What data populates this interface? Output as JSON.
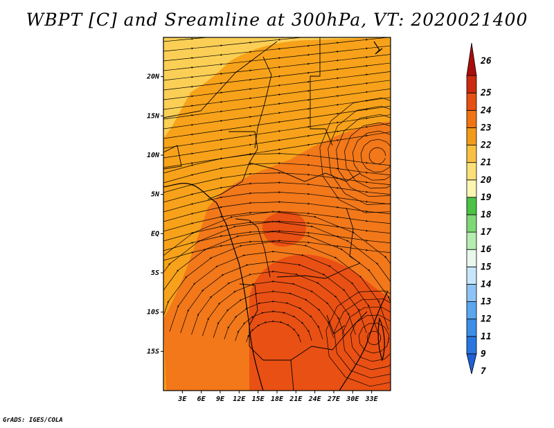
{
  "title": "WBPT [C] and Sreamline at 300hPa, VT: 2020021400",
  "credit": "GrADS: IGES/COLA",
  "map": {
    "lon_range": [
      0,
      36
    ],
    "lat_range": [
      -20,
      25
    ],
    "lat_ticks": [
      {
        "value": 20,
        "label": "20N"
      },
      {
        "value": 15,
        "label": "15N"
      },
      {
        "value": 10,
        "label": "10N"
      },
      {
        "value": 5,
        "label": "5N"
      },
      {
        "value": 0,
        "label": "EQ"
      },
      {
        "value": -5,
        "label": "5S"
      },
      {
        "value": -10,
        "label": "10S"
      },
      {
        "value": -15,
        "label": "15S"
      }
    ],
    "lon_ticks": [
      {
        "value": 3,
        "label": "3E"
      },
      {
        "value": 6,
        "label": "6E"
      },
      {
        "value": 9,
        "label": "9E"
      },
      {
        "value": 12,
        "label": "12E"
      },
      {
        "value": 15,
        "label": "15E"
      },
      {
        "value": 18,
        "label": "18E"
      },
      {
        "value": 21,
        "label": "21E"
      },
      {
        "value": 24,
        "label": "24E"
      },
      {
        "value": 27,
        "label": "27E"
      },
      {
        "value": 30,
        "label": "30E"
      },
      {
        "value": 33,
        "label": "33E"
      }
    ]
  },
  "colorbar": {
    "labels": [
      "7",
      "9",
      "11",
      "12",
      "13",
      "14",
      "15",
      "16",
      "17",
      "18",
      "19",
      "20",
      "21",
      "22",
      "23",
      "24",
      "25",
      "26"
    ],
    "colors": [
      "#1e5fd6",
      "#2a76e0",
      "#3c8ee8",
      "#5aa6f0",
      "#8ec4f5",
      "#c8e6fb",
      "#e8f8ec",
      "#b5ecb0",
      "#7ed876",
      "#4cc246",
      "#fbf5b2",
      "#fbe07a",
      "#f8c043",
      "#f29b19",
      "#f07512",
      "#e55013",
      "#cc2a10",
      "#a80d0b"
    ]
  },
  "field_colors": {
    "low": "#fbcf55",
    "mid": "#f7a21a",
    "high": "#f2781a",
    "peak": "#e95013"
  }
}
